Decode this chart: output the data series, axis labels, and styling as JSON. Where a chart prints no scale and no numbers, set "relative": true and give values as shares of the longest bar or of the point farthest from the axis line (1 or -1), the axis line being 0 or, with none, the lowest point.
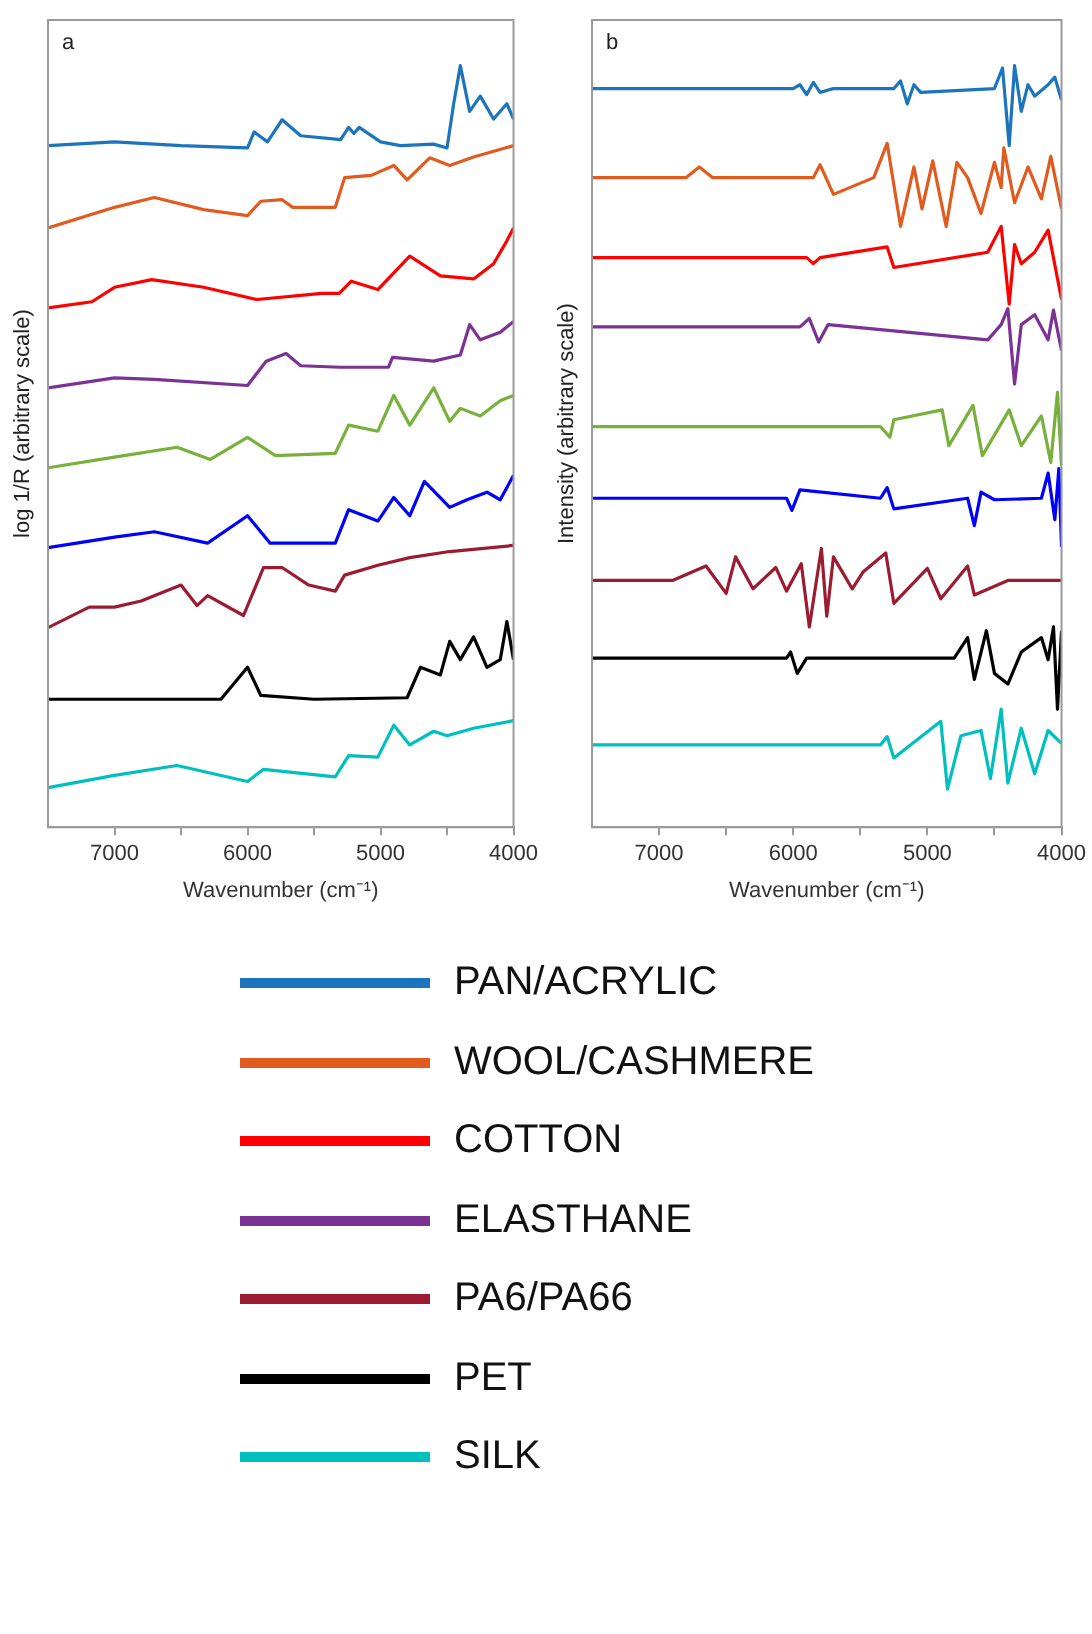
{
  "chart_data": [
    {
      "type": "line",
      "annotations": [
        "a"
      ],
      "xlabel": "Wavenumber (cm⁻¹)",
      "ylabel": "log 1/R (arbitrary scale)",
      "relative": true,
      "legend": "bottom",
      "xlim": [
        7500,
        4000
      ],
      "xticks": [
        7000,
        {
          "value": 6500,
          "label": null
        },
        6000,
        {
          "value": 5500,
          "label": null
        },
        5000,
        {
          "value": 4500,
          "label": null
        },
        4000
      ],
      "series": [
        {
          "name": "PAN/ACRYLIC",
          "color": "#1c75bc",
          "x": [
            7500,
            7000,
            6500,
            6000,
            5950,
            5850,
            5740,
            5600,
            5300,
            5240,
            5200,
            5160,
            5000,
            4850,
            4600,
            4500,
            4450,
            4400,
            4330,
            4250,
            4150,
            4050,
            4000
          ],
          "values": [
            0.895,
            0.9,
            0.895,
            0.892,
            0.913,
            0.9,
            0.929,
            0.908,
            0.903,
            0.919,
            0.911,
            0.919,
            0.9,
            0.895,
            0.897,
            0.892,
            0.95,
            1.0,
            0.94,
            0.96,
            0.93,
            0.95,
            0.93
          ]
        },
        {
          "name": "WOOL/CASHMERE",
          "color": "#e15b1f",
          "x": [
            7500,
            7000,
            6700,
            6330,
            6000,
            5900,
            5740,
            5660,
            5340,
            5270,
            5070,
            4900,
            4800,
            4630,
            4480,
            4300,
            4000
          ],
          "values": [
            0.787,
            0.814,
            0.827,
            0.811,
            0.803,
            0.822,
            0.824,
            0.814,
            0.814,
            0.853,
            0.856,
            0.869,
            0.85,
            0.879,
            0.869,
            0.88,
            0.895
          ]
        },
        {
          "name": "COTTON",
          "color": "#ff0000",
          "x": [
            7500,
            7170,
            7000,
            6720,
            6330,
            5930,
            5440,
            5310,
            5220,
            5020,
            4780,
            4550,
            4300,
            4150,
            4050,
            4000
          ],
          "values": [
            0.682,
            0.69,
            0.709,
            0.719,
            0.709,
            0.693,
            0.701,
            0.701,
            0.717,
            0.706,
            0.75,
            0.724,
            0.72,
            0.74,
            0.77,
            0.787
          ]
        },
        {
          "name": "ELASTHANE",
          "color": "#7b3294",
          "x": [
            7500,
            7000,
            6700,
            6000,
            5860,
            5710,
            5600,
            5300,
            4940,
            4910,
            4600,
            4400,
            4330,
            4250,
            4100,
            4000
          ],
          "values": [
            0.577,
            0.59,
            0.588,
            0.58,
            0.612,
            0.622,
            0.606,
            0.604,
            0.604,
            0.617,
            0.612,
            0.62,
            0.66,
            0.64,
            0.65,
            0.664
          ]
        },
        {
          "color": "#78b03c",
          "x": [
            7500,
            7000,
            6530,
            6280,
            6000,
            5790,
            5340,
            5240,
            5020,
            4900,
            4780,
            4600,
            4480,
            4400,
            4250,
            4100,
            4000
          ],
          "values": [
            0.472,
            0.486,
            0.499,
            0.483,
            0.512,
            0.488,
            0.491,
            0.528,
            0.52,
            0.567,
            0.528,
            0.577,
            0.533,
            0.55,
            0.54,
            0.56,
            0.567
          ]
        },
        {
          "color": "#0000ff",
          "x": [
            7500,
            7000,
            6700,
            6300,
            6000,
            5830,
            5340,
            5240,
            5020,
            4900,
            4780,
            4670,
            4480,
            4350,
            4200,
            4100,
            4000
          ],
          "values": [
            0.367,
            0.381,
            0.388,
            0.373,
            0.409,
            0.373,
            0.373,
            0.417,
            0.402,
            0.433,
            0.409,
            0.454,
            0.42,
            0.43,
            0.44,
            0.43,
            0.462
          ]
        },
        {
          "name": "PA6/PA66",
          "color": "#9b1b30",
          "x": [
            7500,
            7190,
            7000,
            6800,
            6500,
            6380,
            6300,
            6030,
            5880,
            5740,
            5540,
            5340,
            5270,
            5020,
            4780,
            4480,
            4000
          ],
          "values": [
            0.262,
            0.289,
            0.289,
            0.297,
            0.318,
            0.291,
            0.304,
            0.278,
            0.341,
            0.341,
            0.318,
            0.31,
            0.331,
            0.344,
            0.354,
            0.362,
            0.37
          ]
        },
        {
          "name": "PET",
          "color": "#000000",
          "x": [
            7500,
            6200,
            6000,
            5900,
            5500,
            4800,
            4700,
            4550,
            4480,
            4400,
            4300,
            4200,
            4100,
            4050,
            4000
          ],
          "values": [
            0.168,
            0.168,
            0.21,
            0.173,
            0.168,
            0.17,
            0.21,
            0.2,
            0.244,
            0.22,
            0.25,
            0.21,
            0.22,
            0.27,
            0.22
          ]
        },
        {
          "name": "SILK",
          "color": "#00bfbf",
          "x": [
            7500,
            7000,
            6530,
            6000,
            5880,
            5340,
            5240,
            5020,
            4900,
            4780,
            4600,
            4500,
            4300,
            4000
          ],
          "values": [
            0.052,
            0.068,
            0.081,
            0.06,
            0.076,
            0.066,
            0.094,
            0.092,
            0.134,
            0.108,
            0.126,
            0.12,
            0.13,
            0.14
          ]
        }
      ]
    },
    {
      "type": "line",
      "annotations": [
        "b"
      ],
      "xlabel": "Wavenumber (cm⁻¹)",
      "ylabel": "Intensity (arbitrary scale)",
      "relative": true,
      "xlim": [
        7500,
        4000
      ],
      "xticks": [
        7000,
        {
          "value": 6500,
          "label": null
        },
        6000,
        {
          "value": 5500,
          "label": null
        },
        5000,
        {
          "value": 4500,
          "label": null
        },
        4000
      ],
      "series": [
        {
          "color": "#1c75bc",
          "x": [
            7500,
            6000,
            5950,
            5900,
            5850,
            5800,
            5700,
            5250,
            5200,
            5150,
            5100,
            5050,
            4500,
            4440,
            4390,
            4350,
            4300,
            4250,
            4200,
            4100,
            4050,
            4000
          ],
          "values": [
            0.97,
            0.97,
            0.975,
            0.962,
            0.978,
            0.965,
            0.97,
            0.97,
            0.98,
            0.95,
            0.975,
            0.965,
            0.97,
            0.997,
            0.895,
            1.0,
            0.94,
            0.975,
            0.96,
            0.975,
            0.985,
            0.955
          ]
        },
        {
          "color": "#e15b1f",
          "x": [
            7500,
            6800,
            6700,
            6600,
            5850,
            5800,
            5700,
            5400,
            5300,
            5200,
            5100,
            5040,
            4960,
            4860,
            4780,
            4700,
            4600,
            4500,
            4450,
            4430,
            4350,
            4250,
            4150,
            4080,
            4000
          ],
          "values": [
            0.853,
            0.853,
            0.867,
            0.853,
            0.853,
            0.87,
            0.831,
            0.853,
            0.898,
            0.789,
            0.867,
            0.812,
            0.875,
            0.789,
            0.873,
            0.853,
            0.806,
            0.873,
            0.84,
            0.892,
            0.82,
            0.867,
            0.825,
            0.881,
            0.812
          ]
        },
        {
          "color": "#ff0000",
          "x": [
            7500,
            5900,
            5850,
            5800,
            5300,
            5250,
            4550,
            4450,
            4390,
            4350,
            4300,
            4200,
            4100,
            4000
          ],
          "values": [
            0.748,
            0.748,
            0.74,
            0.748,
            0.762,
            0.735,
            0.755,
            0.789,
            0.687,
            0.765,
            0.74,
            0.755,
            0.784,
            0.693
          ]
        },
        {
          "color": "#7b3294",
          "x": [
            7500,
            5950,
            5880,
            5810,
            5740,
            4550,
            4450,
            4400,
            4350,
            4300,
            4200,
            4100,
            4060,
            4000
          ],
          "values": [
            0.657,
            0.657,
            0.668,
            0.637,
            0.66,
            0.64,
            0.66,
            0.681,
            0.582,
            0.66,
            0.673,
            0.64,
            0.679,
            0.626
          ]
        },
        {
          "color": "#78b03c",
          "x": [
            7500,
            5350,
            5280,
            5250,
            4890,
            4840,
            4660,
            4590,
            4390,
            4300,
            4150,
            4080,
            4030,
            4000
          ],
          "values": [
            0.526,
            0.526,
            0.512,
            0.535,
            0.548,
            0.501,
            0.554,
            0.488,
            0.548,
            0.501,
            0.54,
            0.479,
            0.571,
            0.474
          ]
        },
        {
          "color": "#0000ff",
          "x": [
            7500,
            6050,
            6010,
            5950,
            5350,
            5300,
            5250,
            4700,
            4650,
            4600,
            4500,
            4150,
            4100,
            4050,
            4020,
            4000
          ],
          "values": [
            0.432,
            0.432,
            0.416,
            0.443,
            0.432,
            0.446,
            0.418,
            0.432,
            0.396,
            0.44,
            0.43,
            0.432,
            0.465,
            0.404,
            0.471,
            0.368
          ]
        },
        {
          "color": "#9b1b30",
          "x": [
            7500,
            6900,
            6650,
            6500,
            6430,
            6300,
            6130,
            6050,
            5940,
            5880,
            5790,
            5750,
            5700,
            5560,
            5480,
            5310,
            5250,
            5000,
            4900,
            4700,
            4650,
            4400,
            4000
          ],
          "values": [
            0.324,
            0.324,
            0.343,
            0.307,
            0.355,
            0.313,
            0.341,
            0.31,
            0.346,
            0.263,
            0.366,
            0.277,
            0.355,
            0.313,
            0.335,
            0.36,
            0.294,
            0.34,
            0.3,
            0.343,
            0.305,
            0.324,
            0.324
          ]
        },
        {
          "color": "#000000",
          "x": [
            7500,
            6050,
            6020,
            5970,
            5900,
            4800,
            4700,
            4650,
            4560,
            4500,
            4400,
            4300,
            4150,
            4100,
            4060,
            4030,
            4000
          ],
          "values": [
            0.222,
            0.222,
            0.23,
            0.202,
            0.222,
            0.222,
            0.249,
            0.194,
            0.258,
            0.202,
            0.188,
            0.23,
            0.249,
            0.22,
            0.263,
            0.155,
            0.258
          ]
        },
        {
          "color": "#00bfbf",
          "x": [
            7500,
            5350,
            5300,
            5250,
            4900,
            4850,
            4750,
            4600,
            4530,
            4450,
            4400,
            4300,
            4200,
            4100,
            4000
          ],
          "values": [
            0.108,
            0.108,
            0.119,
            0.091,
            0.139,
            0.05,
            0.12,
            0.127,
            0.064,
            0.155,
            0.058,
            0.13,
            0.07,
            0.127,
            0.11
          ]
        }
      ]
    }
  ]
}
